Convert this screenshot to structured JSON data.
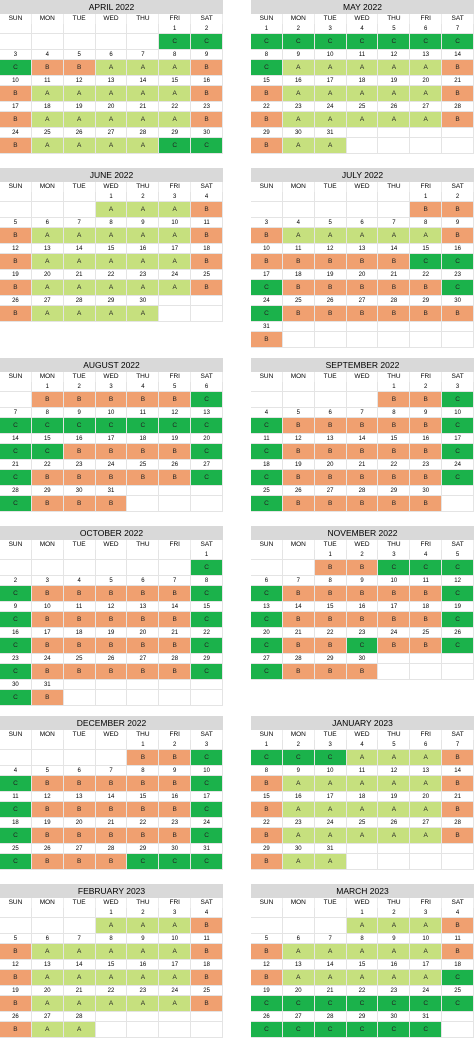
{
  "days_of_week": [
    "SUN",
    "MON",
    "TUE",
    "WED",
    "THU",
    "FRI",
    "SAT"
  ],
  "colors": {
    "A": "#c6e07e",
    "B": "#f0a070",
    "C": "#1bb24b"
  },
  "months": [
    {
      "title": "APRIL 2022",
      "offset": 5,
      "codes": "CCCBBAAABBAAAAABBAAAAABBAAAACC"
    },
    {
      "title": "MAY 2022",
      "offset": 0,
      "codes": "CCCCCCCCAAAAABBAAAAABBAAAAABBAA"
    },
    {
      "title": "JUNE 2022",
      "offset": 3,
      "codes": "AAABBAAAAABBAAAAABBAAAAABBAAAA"
    },
    {
      "title": "JULY 2022",
      "offset": 5,
      "codes": "BBBAAAAABBBBBBCCCBBBBBCCBBBBBBB"
    },
    {
      "title": "AUGUST 2022",
      "offset": 1,
      "codes": "BBBBBCCCCCCCCCCBBBBCCBBBBBCCBBB"
    },
    {
      "title": "SEPTEMBER 2022",
      "offset": 4,
      "codes": "BBCCBBBBBCCBBBBBCCBBBBBCCBBBBB"
    },
    {
      "title": "OCTOBER 2022",
      "offset": 6,
      "codes": "CCBBBBBCCBBBBBCCBBBBBCCBBBBBCCB"
    },
    {
      "title": "NOVEMBER 2022",
      "offset": 2,
      "codes": "BBCCCCBBBBBCCBBBBBCCBBCBBCCBBB"
    },
    {
      "title": "DECEMBER 2022",
      "offset": 4,
      "codes": "BBCCBBBBBCCBBBBBCCBBBBBCCBBBCCC"
    },
    {
      "title": "JANUARY 2023",
      "offset": 0,
      "codes": "CCCAAABBAAAAABBAAAAABBAAAAABBAA"
    },
    {
      "title": "FEBRUARY 2023",
      "offset": 3,
      "codes": "AAABBAAAAABBAAAAABBAAAAABBAA"
    },
    {
      "title": "MARCH 2023",
      "offset": 3,
      "codes": "AAABBAAAAABBAAAAACCCCCCCCCCCCCC"
    }
  ]
}
